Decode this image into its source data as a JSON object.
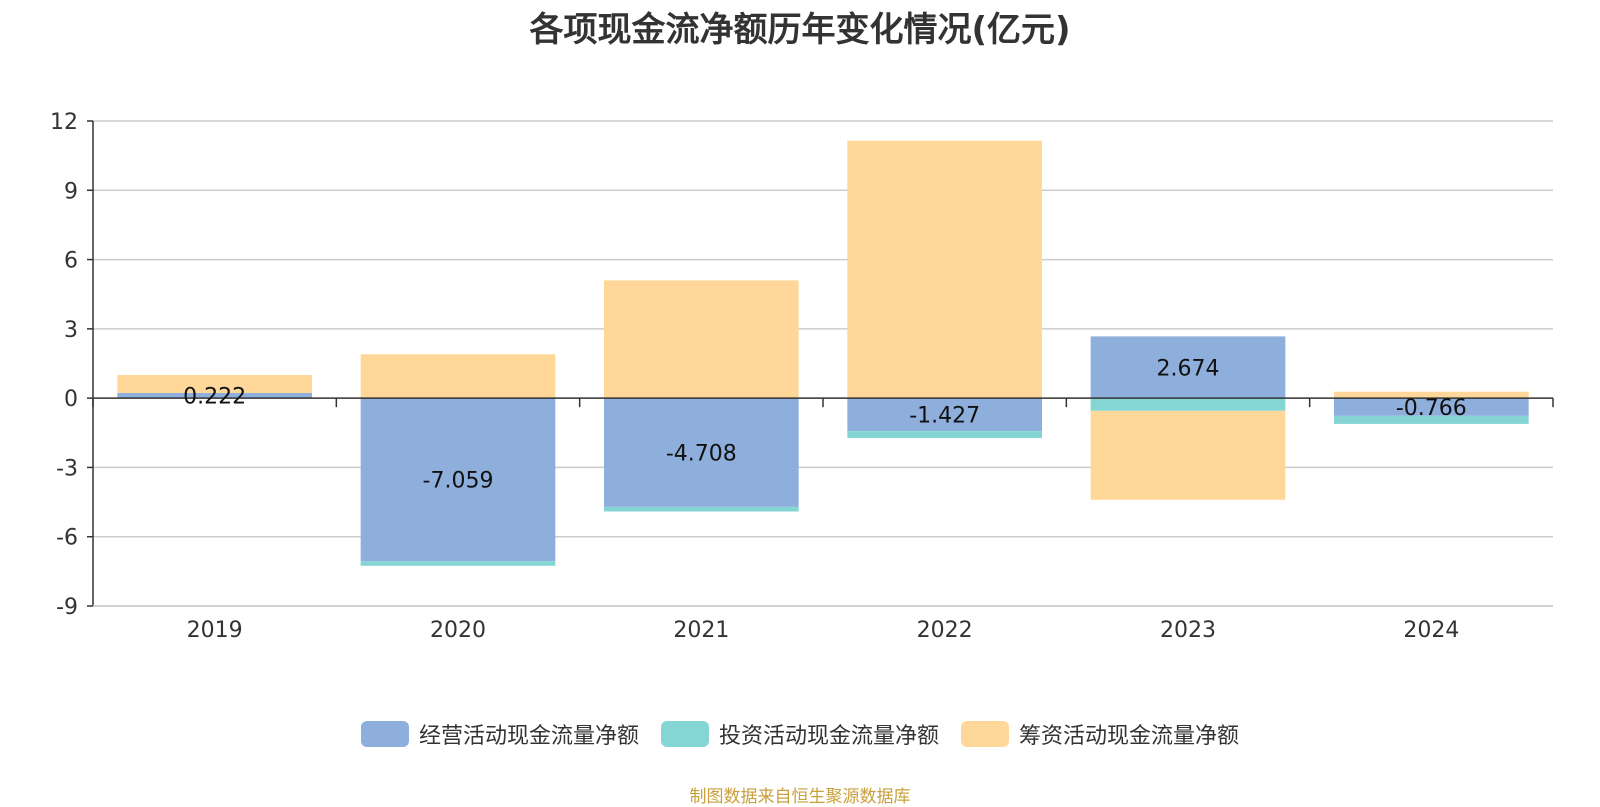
{
  "source_note": "制图数据来自恒生聚源数据库",
  "chart_data": {
    "type": "bar",
    "stacked": true,
    "title": "各项现金流净额历年变化情况(亿元)",
    "xlabel": "",
    "ylabel": "",
    "categories": [
      "2019",
      "2020",
      "2021",
      "2022",
      "2023",
      "2024"
    ],
    "ylim": [
      -9,
      12
    ],
    "yticks": [
      12,
      9,
      6,
      3,
      0,
      -3,
      -6,
      -9
    ],
    "grid": true,
    "legend_position": "bottom",
    "series": [
      {
        "name": "经营活动现金流量净额",
        "color": "#8eaedc",
        "values": [
          0.222,
          -7.059,
          -4.708,
          -1.427,
          2.674,
          -0.766
        ],
        "labels": [
          "0.222",
          "-7.059",
          "-4.708",
          "-1.427",
          "2.674",
          "-0.766"
        ]
      },
      {
        "name": "投资活动现金流量净额",
        "color": "#85d5d5",
        "values": [
          0.0,
          -0.2,
          -0.2,
          -0.3,
          -0.55,
          -0.35
        ]
      },
      {
        "name": "筹资活动现金流量净额",
        "color": "#ffd899",
        "values": [
          0.78,
          1.9,
          5.1,
          11.15,
          -3.85,
          0.28
        ]
      }
    ]
  }
}
